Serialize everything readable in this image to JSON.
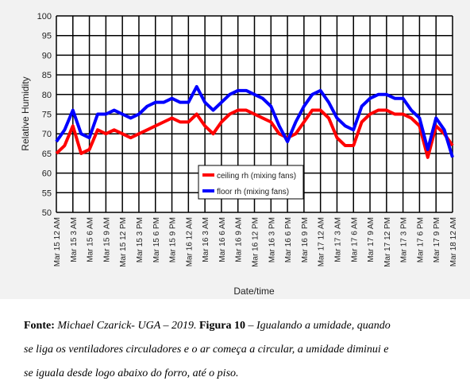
{
  "chart_data": {
    "type": "line",
    "y_label": "Relative Humidity",
    "x_label": "Date/time",
    "categories": [
      "Mar 15  12 AM",
      null,
      "Mar 15  3 AM",
      null,
      "Mar 15  6 AM",
      null,
      "Mar 15  9 AM",
      null,
      "Mar 15  12 PM",
      null,
      "Mar 15  3 PM",
      null,
      "Mar 15  6 PM",
      null,
      "Mar 15  9 PM",
      null,
      "Mar 16  12 AM",
      null,
      "Mar 16  3 AM",
      null,
      "Mar 16  6 AM",
      null,
      "Mar 16  9 AM",
      null,
      "Mar 16  12 PM",
      null,
      "Mar 16  3 PM",
      null,
      "Mar 16  6 PM",
      null,
      "Mar 16  9 PM",
      null,
      "Mar 17  12 AM",
      null,
      "Mar 17  3 AM",
      null,
      "Mar 17  6 AM",
      null,
      "Mar 17  9 AM",
      null,
      "Mar 17  12 PM",
      null,
      "Mar 17  3 PM",
      null,
      "Mar 17  6 PM",
      null,
      "Mar 17  9 PM",
      null,
      "Mar 18  12 AM"
    ],
    "series": [
      {
        "name": "ceiling rh (mixing fans)",
        "color": "#ff0000",
        "values": [
          65,
          67,
          72,
          65,
          66,
          71,
          70,
          71,
          70,
          69,
          70,
          71,
          72,
          73,
          74,
          73,
          73,
          75,
          72,
          70,
          73,
          75,
          76,
          76,
          75,
          74,
          73,
          70,
          69,
          70,
          73,
          76,
          76,
          74,
          69,
          67,
          67,
          73,
          75,
          76,
          76,
          75,
          75,
          74,
          72,
          64,
          72,
          70,
          67
        ]
      },
      {
        "name": "floor rh (mixing fans)",
        "color": "#0000ff",
        "values": [
          68,
          71,
          76,
          70,
          69,
          75,
          75,
          76,
          75,
          74,
          75,
          77,
          78,
          78,
          79,
          78,
          78,
          82,
          78,
          76,
          78,
          80,
          81,
          81,
          80,
          79,
          77,
          72,
          68,
          73,
          77,
          80,
          81,
          78,
          74,
          72,
          71,
          77,
          79,
          80,
          80,
          79,
          79,
          76,
          74,
          66,
          74,
          71,
          64
        ]
      }
    ],
    "ylim": [
      50,
      100
    ],
    "yticks": [
      50,
      55,
      60,
      65,
      70,
      75,
      80,
      85,
      90,
      95,
      100
    ],
    "grid": true,
    "caption": [
      "Fonte:",
      "Michael Czarick- UGA – 2019.",
      "Figura 10",
      "– Igualando a umidade, quando",
      "se liga os ventiladores circuladores e o ar começa a circular, a umidade diminui e",
      "se iguala desde logo abaixo do forro, até o piso."
    ]
  }
}
